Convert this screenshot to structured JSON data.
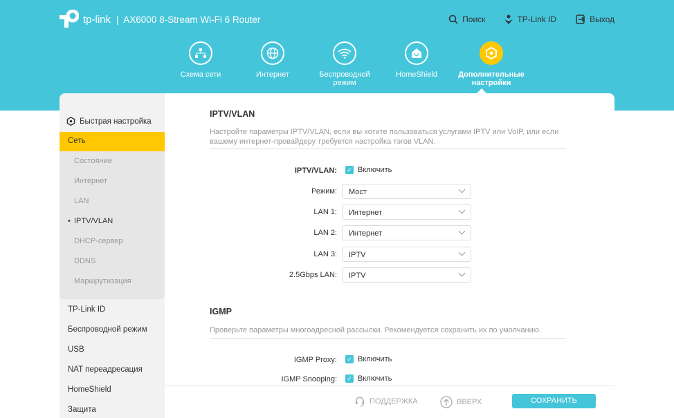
{
  "header": {
    "brand": "tp-link",
    "model": "AX6000 8-Stream Wi-Fi 6 Router",
    "links": [
      {
        "label": "Поиск",
        "icon": "search-icon"
      },
      {
        "label": "TP-Link ID",
        "icon": "user-icon"
      },
      {
        "label": "Выход",
        "icon": "logout-icon"
      }
    ]
  },
  "nav": [
    {
      "label": "Схема сети",
      "icon": "network-map-icon"
    },
    {
      "label": "Интернет",
      "icon": "globe-icon"
    },
    {
      "label": "Беспроводной режим",
      "icon": "wifi-icon"
    },
    {
      "label": "HomeShield",
      "icon": "home-shield-icon"
    },
    {
      "label": "Дополнительные настройки",
      "icon": "gear-icon",
      "active": true
    }
  ],
  "sidebar": {
    "quick": "Быстрая настройка",
    "active": "Сеть",
    "sub": [
      "Состояние",
      "Интернет",
      "LAN",
      "IPTV/VLAN",
      "DHCP-сервер",
      "DDNS",
      "Маршрутизация"
    ],
    "items": [
      "TP-Link ID",
      "Беспроводной режим",
      "USB",
      "NAT переадресация",
      "HomeShield",
      "Защита"
    ]
  },
  "iptv": {
    "title": "IPTV/VLAN",
    "desc": "Настройте параметры IPTV/VLAN, если вы хотите пользоваться услугами IPTV или VoIP, или если вашему интернет-провайдеру требуется настройка тэгов VLAN.",
    "enable_label": "IPTV/VLAN:",
    "enable_text": "Включить",
    "enabled": true,
    "fields": [
      {
        "label": "Режим:",
        "value": "Мост"
      },
      {
        "label": "LAN 1:",
        "value": "Интернет"
      },
      {
        "label": "LAN 2:",
        "value": "Интернет"
      },
      {
        "label": "LAN 3:",
        "value": "IPTV"
      },
      {
        "label": "2.5Gbps LAN:",
        "value": "IPTV"
      }
    ]
  },
  "igmp": {
    "title": "IGMP",
    "desc": "Проверьте параметры многоадресной рассылки. Рекомендуется сохранить их по умолчанию.",
    "rows": [
      {
        "label": "IGMP Proxy:",
        "text": "Включить",
        "checked": true
      },
      {
        "label": "IGMP Snooping:",
        "text": "Включить",
        "checked": true
      }
    ]
  },
  "footer": {
    "support": "ПОДДЕРЖКА",
    "top": "ВВЕРХ",
    "save": "СОХРАНИТЬ"
  },
  "colors": {
    "accent": "#45c5da",
    "active": "#ffc800"
  }
}
